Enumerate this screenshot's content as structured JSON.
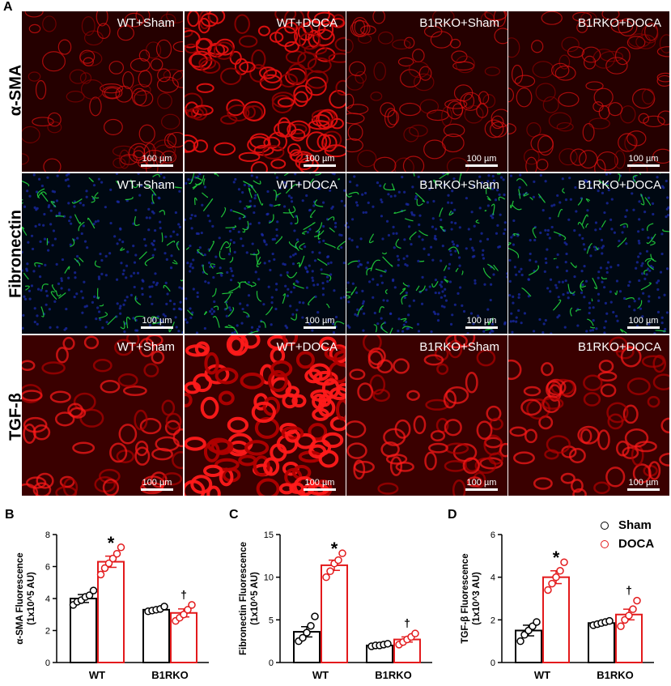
{
  "panels": {
    "A": "A",
    "B": "B",
    "C": "C",
    "D": "D"
  },
  "row_labels": [
    "α-SMA",
    "Fibronectin",
    "TGF-β"
  ],
  "tile_titles": [
    "WT+Sham",
    "WT+DOCA",
    "B1RKO+Sham",
    "B1RKO+DOCA"
  ],
  "scale_bar": "100 µm",
  "rows": [
    {
      "bg": "#250000",
      "fg": "#e01010",
      "fg2": "#8a0000"
    },
    {
      "bg": "#000812",
      "fg": "#22e040",
      "fg2": "#1a2aa8"
    },
    {
      "bg": "#3a0000",
      "fg": "#ff1a1a",
      "fg2": "#b00000"
    }
  ],
  "legend": [
    {
      "name": "Sham",
      "color": "#000000"
    },
    {
      "name": "DOCA",
      "color": "#e31a1c"
    }
  ],
  "significance": {
    "vs_sham": "*",
    "vs_wt": "†"
  },
  "chart_data": [
    {
      "type": "bar",
      "ylabel": "α-SMA Fluorescence\n(1x10^5 AU)",
      "categories": [
        "WT",
        "B1RKO"
      ],
      "ylim": [
        0,
        8
      ],
      "yticks": [
        0,
        2,
        4,
        6,
        8
      ],
      "series": [
        {
          "name": "Sham",
          "values": [
            4.0,
            3.3
          ],
          "sem": [
            0.25,
            0.12
          ],
          "points": [
            [
              3.6,
              3.8,
              3.9,
              4.1,
              4.2,
              4.5
            ],
            [
              3.2,
              3.25,
              3.3,
              3.35,
              3.5
            ]
          ]
        },
        {
          "name": "DOCA",
          "values": [
            6.3,
            3.1
          ],
          "sem": [
            0.35,
            0.25
          ],
          "points": [
            [
              5.5,
              5.9,
              6.2,
              6.5,
              6.8,
              7.2
            ],
            [
              2.6,
              2.8,
              3.0,
              3.3,
              3.6
            ]
          ]
        }
      ],
      "annotations": [
        {
          "category": "WT",
          "series": "DOCA",
          "text": "*"
        },
        {
          "category": "B1RKO",
          "series": "DOCA",
          "text": "†"
        }
      ]
    },
    {
      "type": "bar",
      "ylabel": "Fibronectin Fluorescence\n(1x10^5 AU)",
      "categories": [
        "WT",
        "B1RKO"
      ],
      "ylim": [
        0,
        15
      ],
      "yticks": [
        0,
        5,
        10,
        15
      ],
      "series": [
        {
          "name": "Sham",
          "values": [
            3.6,
            2.0
          ],
          "sem": [
            0.6,
            0.12
          ],
          "points": [
            [
              2.5,
              2.9,
              3.5,
              4.3,
              5.4
            ],
            [
              1.9,
              2.0,
              2.0,
              2.1,
              2.2
            ]
          ]
        },
        {
          "name": "DOCA",
          "values": [
            11.4,
            2.7
          ],
          "sem": [
            0.6,
            0.3
          ],
          "points": [
            [
              10.0,
              10.7,
              11.6,
              12.0,
              12.8
            ],
            [
              2.1,
              2.4,
              2.7,
              3.0,
              3.4
            ]
          ]
        }
      ],
      "annotations": [
        {
          "category": "WT",
          "series": "DOCA",
          "text": "*"
        },
        {
          "category": "B1RKO",
          "series": "DOCA",
          "text": "†"
        }
      ]
    },
    {
      "type": "bar",
      "ylabel": "TGF-β Fluorescence\n(1x10^3 AU)",
      "categories": [
        "WT",
        "B1RKO"
      ],
      "ylim": [
        0,
        6
      ],
      "yticks": [
        0,
        2,
        4,
        6
      ],
      "series": [
        {
          "name": "Sham",
          "values": [
            1.5,
            1.85
          ],
          "sem": [
            0.25,
            0.07
          ],
          "points": [
            [
              1.0,
              1.3,
              1.5,
              1.7,
              1.9
            ],
            [
              1.75,
              1.8,
              1.85,
              1.9,
              1.95
            ]
          ]
        },
        {
          "name": "DOCA",
          "values": [
            4.0,
            2.25
          ],
          "sem": [
            0.3,
            0.25
          ],
          "points": [
            [
              3.4,
              3.7,
              4.0,
              4.3,
              4.7
            ],
            [
              1.7,
              2.0,
              2.2,
              2.5,
              2.9
            ]
          ]
        }
      ],
      "annotations": [
        {
          "category": "WT",
          "series": "DOCA",
          "text": "*"
        },
        {
          "category": "B1RKO",
          "series": "DOCA",
          "text": "†"
        }
      ]
    }
  ]
}
